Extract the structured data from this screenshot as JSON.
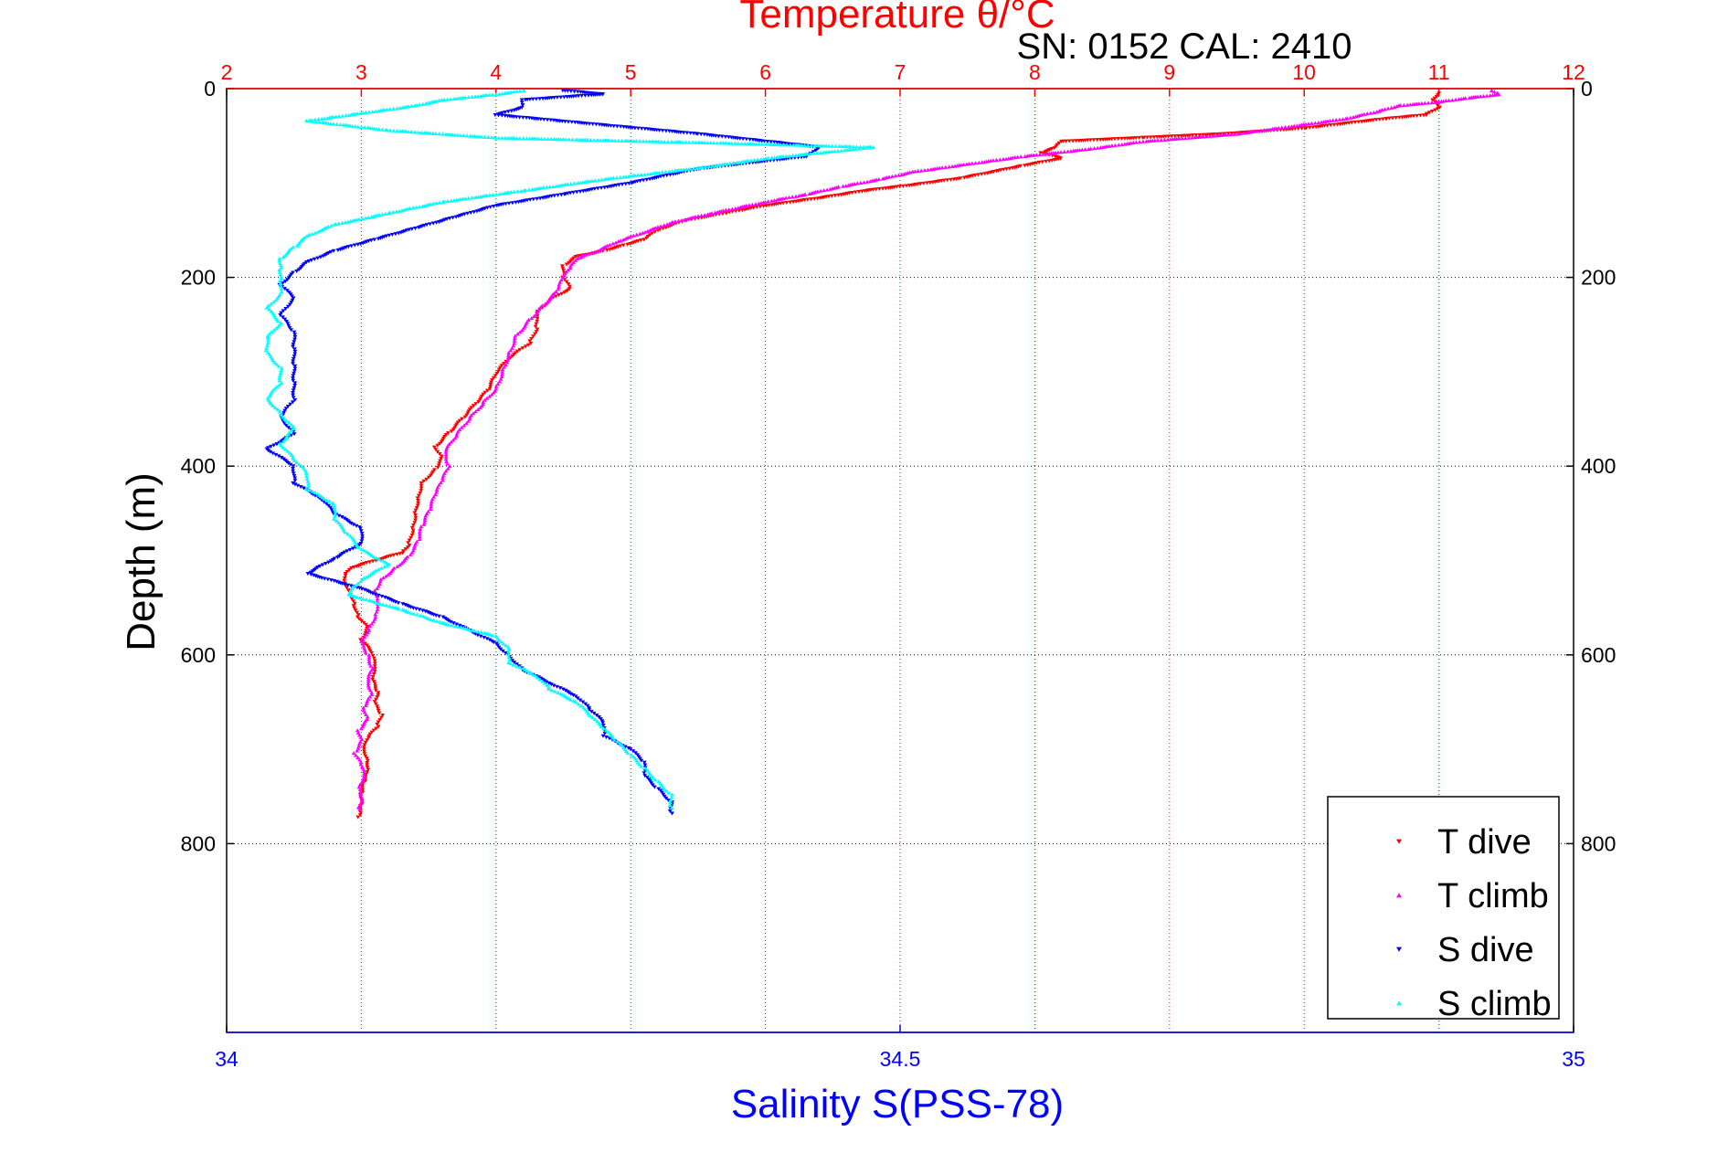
{
  "chart_data": {
    "type": "scatter",
    "title": "Temperature θ/°C",
    "subtitle": "SN: 0152  CAL: 2410",
    "xlabel": "Salinity S(PSS-78)",
    "ylabel": "Depth (m)",
    "temperature_axis": {
      "range": [
        2,
        12
      ],
      "ticks": [
        2,
        3,
        4,
        5,
        6,
        7,
        8,
        9,
        10,
        11,
        12
      ],
      "color": "#ff0000",
      "position": "top"
    },
    "salinity_axis": {
      "range": [
        34,
        35
      ],
      "ticks": [
        34,
        34.5,
        35
      ],
      "color": "#0000ff",
      "position": "bottom"
    },
    "depth_axis": {
      "range": [
        0,
        1000
      ],
      "reversed": true,
      "ticks": [
        0,
        200,
        400,
        600,
        800
      ]
    },
    "grid": {
      "vertical": "temperature",
      "horizontal": "depth",
      "style": "dotted"
    },
    "legend": {
      "placement": "bottom-right"
    },
    "series": [
      {
        "name": "T dive",
        "axis": "temperature",
        "color": "#ff0000",
        "marker": "triangle-down",
        "points": [
          [
            11.0,
            5
          ],
          [
            10.95,
            12
          ],
          [
            11.0,
            20
          ],
          [
            10.9,
            28
          ],
          [
            10.6,
            32
          ],
          [
            10.0,
            42
          ],
          [
            9.4,
            48
          ],
          [
            8.8,
            52
          ],
          [
            8.2,
            56
          ],
          [
            8.15,
            63
          ],
          [
            8.05,
            68
          ],
          [
            8.2,
            74
          ],
          [
            7.9,
            82
          ],
          [
            7.7,
            88
          ],
          [
            7.45,
            95
          ],
          [
            7.1,
            102
          ],
          [
            6.75,
            108
          ],
          [
            6.4,
            116
          ],
          [
            6.0,
            124
          ],
          [
            5.7,
            132
          ],
          [
            5.4,
            140
          ],
          [
            5.2,
            150
          ],
          [
            5.1,
            160
          ],
          [
            4.95,
            166
          ],
          [
            4.8,
            172
          ],
          [
            4.6,
            178
          ],
          [
            4.5,
            188
          ],
          [
            4.5,
            200
          ],
          [
            4.55,
            212
          ],
          [
            4.4,
            224
          ],
          [
            4.3,
            238
          ],
          [
            4.3,
            255
          ],
          [
            4.25,
            270
          ],
          [
            4.1,
            285
          ],
          [
            4.0,
            302
          ],
          [
            3.95,
            318
          ],
          [
            3.85,
            334
          ],
          [
            3.75,
            350
          ],
          [
            3.65,
            365
          ],
          [
            3.55,
            380
          ],
          [
            3.6,
            392
          ],
          [
            3.55,
            404
          ],
          [
            3.45,
            418
          ],
          [
            3.42,
            434
          ],
          [
            3.4,
            452
          ],
          [
            3.38,
            468
          ],
          [
            3.35,
            484
          ],
          [
            3.3,
            492
          ],
          [
            3.1,
            500
          ],
          [
            2.92,
            508
          ],
          [
            2.88,
            516
          ],
          [
            2.88,
            524
          ],
          [
            2.92,
            534
          ],
          [
            2.95,
            548
          ],
          [
            2.98,
            560
          ],
          [
            3.05,
            572
          ],
          [
            3.0,
            584
          ],
          [
            3.08,
            598
          ],
          [
            3.1,
            612
          ],
          [
            3.08,
            626
          ],
          [
            3.12,
            640
          ],
          [
            3.1,
            652
          ],
          [
            3.15,
            664
          ],
          [
            3.12,
            676
          ],
          [
            3.05,
            688
          ],
          [
            3.02,
            700
          ],
          [
            3.05,
            712
          ],
          [
            3.05,
            724
          ],
          [
            3.02,
            736
          ],
          [
            3.0,
            748
          ],
          [
            3.0,
            760
          ],
          [
            2.98,
            772
          ]
        ]
      },
      {
        "name": "T climb",
        "axis": "temperature",
        "color": "#ff00ff",
        "marker": "triangle-up",
        "points": [
          [
            11.4,
            2
          ],
          [
            11.45,
            6
          ],
          [
            11.2,
            10
          ],
          [
            11.0,
            14
          ],
          [
            10.7,
            18
          ],
          [
            10.55,
            24
          ],
          [
            10.3,
            32
          ],
          [
            9.9,
            40
          ],
          [
            9.5,
            48
          ],
          [
            8.8,
            56
          ],
          [
            8.4,
            64
          ],
          [
            7.9,
            72
          ],
          [
            7.5,
            80
          ],
          [
            7.1,
            88
          ],
          [
            6.85,
            96
          ],
          [
            6.55,
            104
          ],
          [
            6.3,
            112
          ],
          [
            6.0,
            120
          ],
          [
            5.6,
            132
          ],
          [
            5.3,
            142
          ],
          [
            5.1,
            152
          ],
          [
            4.9,
            162
          ],
          [
            4.75,
            172
          ],
          [
            4.6,
            180
          ],
          [
            4.55,
            190
          ],
          [
            4.5,
            200
          ],
          [
            4.45,
            215
          ],
          [
            4.35,
            230
          ],
          [
            4.25,
            245
          ],
          [
            4.15,
            262
          ],
          [
            4.1,
            280
          ],
          [
            4.05,
            300
          ],
          [
            4.0,
            318
          ],
          [
            3.9,
            334
          ],
          [
            3.8,
            350
          ],
          [
            3.7,
            368
          ],
          [
            3.62,
            385
          ],
          [
            3.65,
            400
          ],
          [
            3.6,
            415
          ],
          [
            3.55,
            430
          ],
          [
            3.5,
            448
          ],
          [
            3.45,
            464
          ],
          [
            3.42,
            480
          ],
          [
            3.35,
            496
          ],
          [
            3.25,
            508
          ],
          [
            3.15,
            520
          ],
          [
            3.1,
            532
          ],
          [
            3.12,
            546
          ],
          [
            3.1,
            560
          ],
          [
            3.05,
            574
          ],
          [
            3.0,
            588
          ],
          [
            3.05,
            600
          ],
          [
            3.08,
            614
          ],
          [
            3.05,
            628
          ],
          [
            3.08,
            642
          ],
          [
            3.02,
            656
          ],
          [
            3.05,
            668
          ],
          [
            2.98,
            680
          ],
          [
            3.0,
            692
          ],
          [
            2.95,
            704
          ],
          [
            3.0,
            716
          ],
          [
            3.02,
            728
          ],
          [
            2.98,
            740
          ],
          [
            3.0,
            752
          ],
          [
            2.98,
            764
          ]
        ]
      },
      {
        "name": "S dive",
        "axis": "salinity",
        "color": "#0000ff",
        "marker": "triangle-down",
        "points": [
          [
            34.25,
            2
          ],
          [
            34.28,
            6
          ],
          [
            34.22,
            12
          ],
          [
            34.22,
            20
          ],
          [
            34.2,
            28
          ],
          [
            34.35,
            48
          ],
          [
            34.44,
            62
          ],
          [
            34.43,
            72
          ],
          [
            34.35,
            85
          ],
          [
            34.3,
            100
          ],
          [
            34.25,
            112
          ],
          [
            34.2,
            124
          ],
          [
            34.17,
            136
          ],
          [
            34.14,
            148
          ],
          [
            34.11,
            160
          ],
          [
            34.08,
            172
          ],
          [
            34.06,
            184
          ],
          [
            34.05,
            195
          ],
          [
            34.04,
            208
          ],
          [
            34.05,
            222
          ],
          [
            34.04,
            240
          ],
          [
            34.05,
            258
          ],
          [
            34.05,
            276
          ],
          [
            34.05,
            294
          ],
          [
            34.05,
            312
          ],
          [
            34.05,
            330
          ],
          [
            34.04,
            348
          ],
          [
            34.05,
            366
          ],
          [
            34.03,
            382
          ],
          [
            34.05,
            400
          ],
          [
            34.05,
            418
          ],
          [
            34.07,
            434
          ],
          [
            34.08,
            450
          ],
          [
            34.1,
            466
          ],
          [
            34.1,
            482
          ],
          [
            34.08,
            498
          ],
          [
            34.06,
            514
          ],
          [
            34.1,
            530
          ],
          [
            34.13,
            546
          ],
          [
            34.16,
            560
          ],
          [
            34.18,
            574
          ],
          [
            34.2,
            588
          ],
          [
            34.21,
            602
          ],
          [
            34.22,
            616
          ],
          [
            34.24,
            630
          ],
          [
            34.26,
            644
          ],
          [
            34.27,
            658
          ],
          [
            34.28,
            672
          ],
          [
            34.28,
            686
          ],
          [
            34.3,
            700
          ],
          [
            34.31,
            714
          ],
          [
            34.31,
            728
          ],
          [
            34.32,
            742
          ],
          [
            34.33,
            756
          ],
          [
            34.33,
            768
          ]
        ]
      },
      {
        "name": "S climb",
        "axis": "salinity",
        "color": "#00ffff",
        "marker": "triangle-up",
        "points": [
          [
            34.22,
            2
          ],
          [
            34.2,
            6
          ],
          [
            34.16,
            12
          ],
          [
            34.14,
            18
          ],
          [
            34.1,
            26
          ],
          [
            34.06,
            34
          ],
          [
            34.12,
            44
          ],
          [
            34.2,
            52
          ],
          [
            34.38,
            58
          ],
          [
            34.48,
            62
          ],
          [
            34.4,
            74
          ],
          [
            34.35,
            84
          ],
          [
            34.28,
            96
          ],
          [
            34.22,
            108
          ],
          [
            34.16,
            120
          ],
          [
            34.12,
            132
          ],
          [
            34.08,
            144
          ],
          [
            34.06,
            156
          ],
          [
            34.05,
            168
          ],
          [
            34.04,
            180
          ],
          [
            34.04,
            192
          ],
          [
            34.04,
            204
          ],
          [
            34.04,
            218
          ],
          [
            34.03,
            232
          ],
          [
            34.04,
            248
          ],
          [
            34.03,
            264
          ],
          [
            34.03,
            280
          ],
          [
            34.04,
            296
          ],
          [
            34.04,
            312
          ],
          [
            34.03,
            328
          ],
          [
            34.04,
            344
          ],
          [
            34.05,
            360
          ],
          [
            34.04,
            376
          ],
          [
            34.05,
            392
          ],
          [
            34.06,
            408
          ],
          [
            34.06,
            424
          ],
          [
            34.08,
            440
          ],
          [
            34.08,
            456
          ],
          [
            34.09,
            472
          ],
          [
            34.1,
            488
          ],
          [
            34.12,
            504
          ],
          [
            34.1,
            520
          ],
          [
            34.09,
            536
          ],
          [
            34.13,
            552
          ],
          [
            34.16,
            566
          ],
          [
            34.2,
            580
          ],
          [
            34.21,
            594
          ],
          [
            34.21,
            608
          ],
          [
            34.23,
            622
          ],
          [
            34.24,
            636
          ],
          [
            34.26,
            650
          ],
          [
            34.27,
            664
          ],
          [
            34.28,
            678
          ],
          [
            34.29,
            692
          ],
          [
            34.3,
            706
          ],
          [
            34.31,
            720
          ],
          [
            34.32,
            734
          ],
          [
            34.33,
            748
          ],
          [
            34.33,
            762
          ]
        ]
      }
    ]
  }
}
